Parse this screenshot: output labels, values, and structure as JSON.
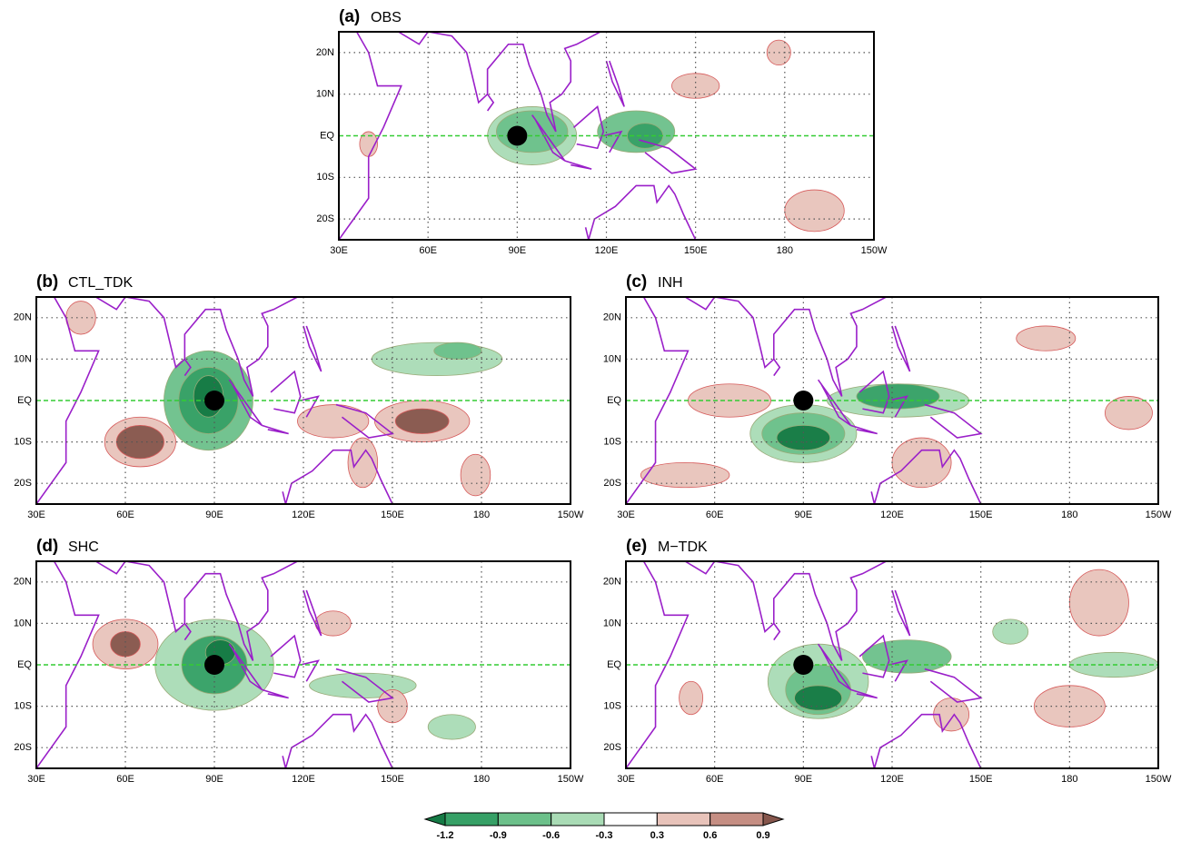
{
  "panels": [
    {
      "label": "(a)",
      "title": "OBS"
    },
    {
      "label": "(b)",
      "title": "CTL_TDK"
    },
    {
      "label": "(c)",
      "title": "INH"
    },
    {
      "label": "(d)",
      "title": "SHC"
    },
    {
      "label": "(e)",
      "title": "M−TDK"
    }
  ],
  "lon_ticks": [
    "30E",
    "60E",
    "90E",
    "120E",
    "150E",
    "180",
    "150W"
  ],
  "lat_ticks": [
    "20N",
    "10N",
    "EQ",
    "10S",
    "20S"
  ],
  "colorbar": {
    "ticks": [
      -1.2,
      -0.9,
      -0.6,
      -0.3,
      0.3,
      0.6,
      0.9
    ],
    "colors": [
      "#157a45",
      "#36a066",
      "#6cc08a",
      "#a9dbb5",
      "#ffffff",
      "#e8c3ba",
      "#c58e83",
      "#86564c"
    ]
  }
}
